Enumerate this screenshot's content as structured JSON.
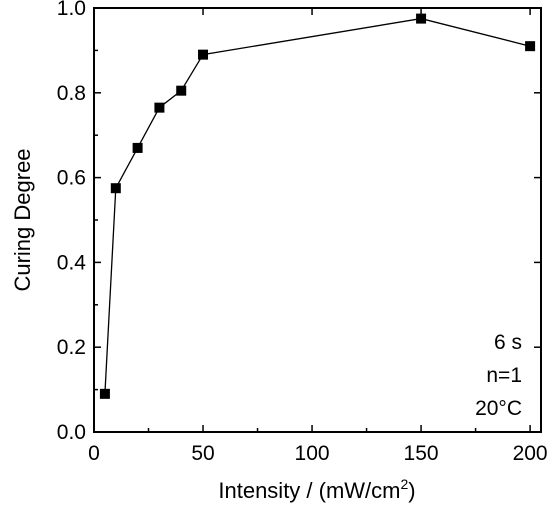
{
  "chart_data": {
    "type": "line",
    "title": "",
    "xlabel": "Intensity / (mW/cm",
    "xlabel_superscript": "2",
    "xlabel_suffix": ")",
    "ylabel": "Curing Degree",
    "xlim": [
      0,
      205
    ],
    "ylim": [
      0,
      1.0
    ],
    "xticks": [
      0,
      50,
      100,
      150,
      200
    ],
    "xtick_labels": [
      "0",
      "50",
      "100",
      "150",
      "200"
    ],
    "yticks": [
      0,
      0.2,
      0.4,
      0.6,
      0.8,
      1.0
    ],
    "ytick_labels": [
      "0.0",
      "0.2",
      "0.4",
      "0.6",
      "0.8",
      "1.0"
    ],
    "grid": false,
    "marker": "square",
    "color": "#000000",
    "series": [
      {
        "x": [
          5,
          10,
          20,
          30,
          40,
          50,
          150,
          200
        ],
        "y": [
          0.09,
          0.575,
          0.67,
          0.765,
          0.805,
          0.89,
          0.975,
          0.91
        ]
      }
    ],
    "annotations": [
      "6 s",
      "n=1",
      "20°C"
    ]
  }
}
